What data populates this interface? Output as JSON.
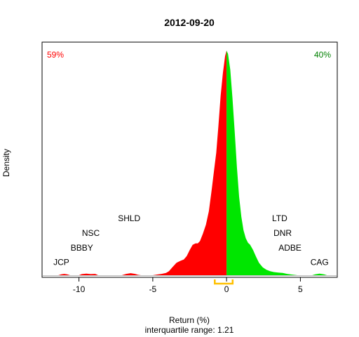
{
  "chart_data": {
    "type": "area",
    "title": "2012-09-20",
    "xlabel": "Return (%)",
    "ylabel": "Density",
    "subtitle": "interquartile range: 1.21",
    "xlim": [
      -12.5,
      7.5
    ],
    "ylim": [
      0,
      1
    ],
    "xticks": [
      -10,
      -5,
      0,
      5
    ],
    "xtick_labels": [
      "-10",
      "-5",
      "0",
      "5"
    ],
    "negative_share": "59%",
    "positive_share": "40%",
    "colors": {
      "negative": "#ff0000",
      "positive": "#00e600",
      "iqr": "#ffc000",
      "axis": "#000000",
      "baseline": "#bebebe"
    },
    "iqr": [
      -0.8,
      0.41
    ],
    "density": [
      [
        -12.4,
        0.0
      ],
      [
        -11.4,
        0.0
      ],
      [
        -11.2,
        0.004
      ],
      [
        -11.0,
        0.006
      ],
      [
        -10.8,
        0.004
      ],
      [
        -10.6,
        0.0
      ],
      [
        -10.0,
        0.0
      ],
      [
        -9.8,
        0.005
      ],
      [
        -9.5,
        0.007
      ],
      [
        -9.2,
        0.005
      ],
      [
        -8.9,
        0.006
      ],
      [
        -8.7,
        0.0
      ],
      [
        -7.1,
        0.0
      ],
      [
        -6.8,
        0.006
      ],
      [
        -6.5,
        0.009
      ],
      [
        -6.2,
        0.006
      ],
      [
        -6.0,
        0.002
      ],
      [
        -5.8,
        0.0
      ],
      [
        -5.0,
        0.0
      ],
      [
        -4.7,
        0.003
      ],
      [
        -4.4,
        0.006
      ],
      [
        -4.1,
        0.01
      ],
      [
        -3.9,
        0.018
      ],
      [
        -3.7,
        0.033
      ],
      [
        -3.4,
        0.055
      ],
      [
        -3.1,
        0.065
      ],
      [
        -2.9,
        0.07
      ],
      [
        -2.7,
        0.085
      ],
      [
        -2.5,
        0.112
      ],
      [
        -2.3,
        0.135
      ],
      [
        -2.1,
        0.142
      ],
      [
        -1.95,
        0.142
      ],
      [
        -1.8,
        0.152
      ],
      [
        -1.6,
        0.185
      ],
      [
        -1.4,
        0.225
      ],
      [
        -1.2,
        0.285
      ],
      [
        -1.0,
        0.385
      ],
      [
        -0.85,
        0.465
      ],
      [
        -0.7,
        0.545
      ],
      [
        -0.55,
        0.665
      ],
      [
        -0.4,
        0.8
      ],
      [
        -0.25,
        0.9
      ],
      [
        -0.1,
        0.975
      ],
      [
        0.0,
        1.0
      ],
      [
        0.1,
        0.985
      ],
      [
        0.25,
        0.915
      ],
      [
        0.4,
        0.79
      ],
      [
        0.55,
        0.64
      ],
      [
        0.7,
        0.48
      ],
      [
        0.85,
        0.35
      ],
      [
        1.0,
        0.26
      ],
      [
        1.15,
        0.2
      ],
      [
        1.3,
        0.165
      ],
      [
        1.45,
        0.145
      ],
      [
        1.6,
        0.135
      ],
      [
        1.8,
        0.112
      ],
      [
        2.0,
        0.082
      ],
      [
        2.2,
        0.055
      ],
      [
        2.45,
        0.035
      ],
      [
        2.7,
        0.024
      ],
      [
        2.95,
        0.018
      ],
      [
        3.2,
        0.014
      ],
      [
        3.5,
        0.012
      ],
      [
        3.8,
        0.01
      ],
      [
        4.1,
        0.006
      ],
      [
        4.4,
        0.003
      ],
      [
        4.8,
        0.0
      ],
      [
        5.8,
        0.0
      ],
      [
        6.0,
        0.004
      ],
      [
        6.3,
        0.007
      ],
      [
        6.6,
        0.004
      ],
      [
        6.8,
        0.0
      ],
      [
        7.4,
        0.0
      ]
    ],
    "annotations": [
      {
        "label": "JCP",
        "x": -11.2,
        "y": 0.046
      },
      {
        "label": "BBBY",
        "x": -9.8,
        "y": 0.11
      },
      {
        "label": "NSC",
        "x": -9.2,
        "y": 0.175
      },
      {
        "label": "SHLD",
        "x": -6.6,
        "y": 0.24
      },
      {
        "label": "LTD",
        "x": 3.6,
        "y": 0.24
      },
      {
        "label": "DNR",
        "x": 3.8,
        "y": 0.175
      },
      {
        "label": "ADBE",
        "x": 4.3,
        "y": 0.11
      },
      {
        "label": "CAG",
        "x": 6.3,
        "y": 0.046
      }
    ]
  }
}
